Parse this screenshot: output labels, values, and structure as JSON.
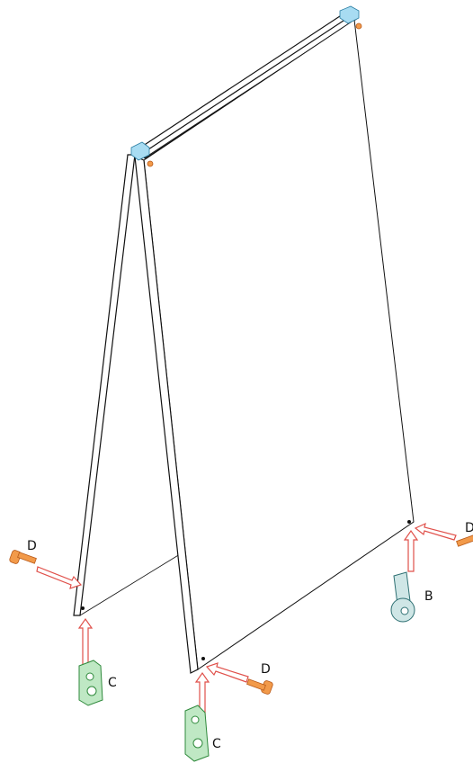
{
  "callouts": [
    {
      "label": "D"
    },
    {
      "label": "D"
    },
    {
      "label": "D"
    },
    {
      "label": "B"
    },
    {
      "label": "C"
    },
    {
      "label": "C"
    }
  ]
}
